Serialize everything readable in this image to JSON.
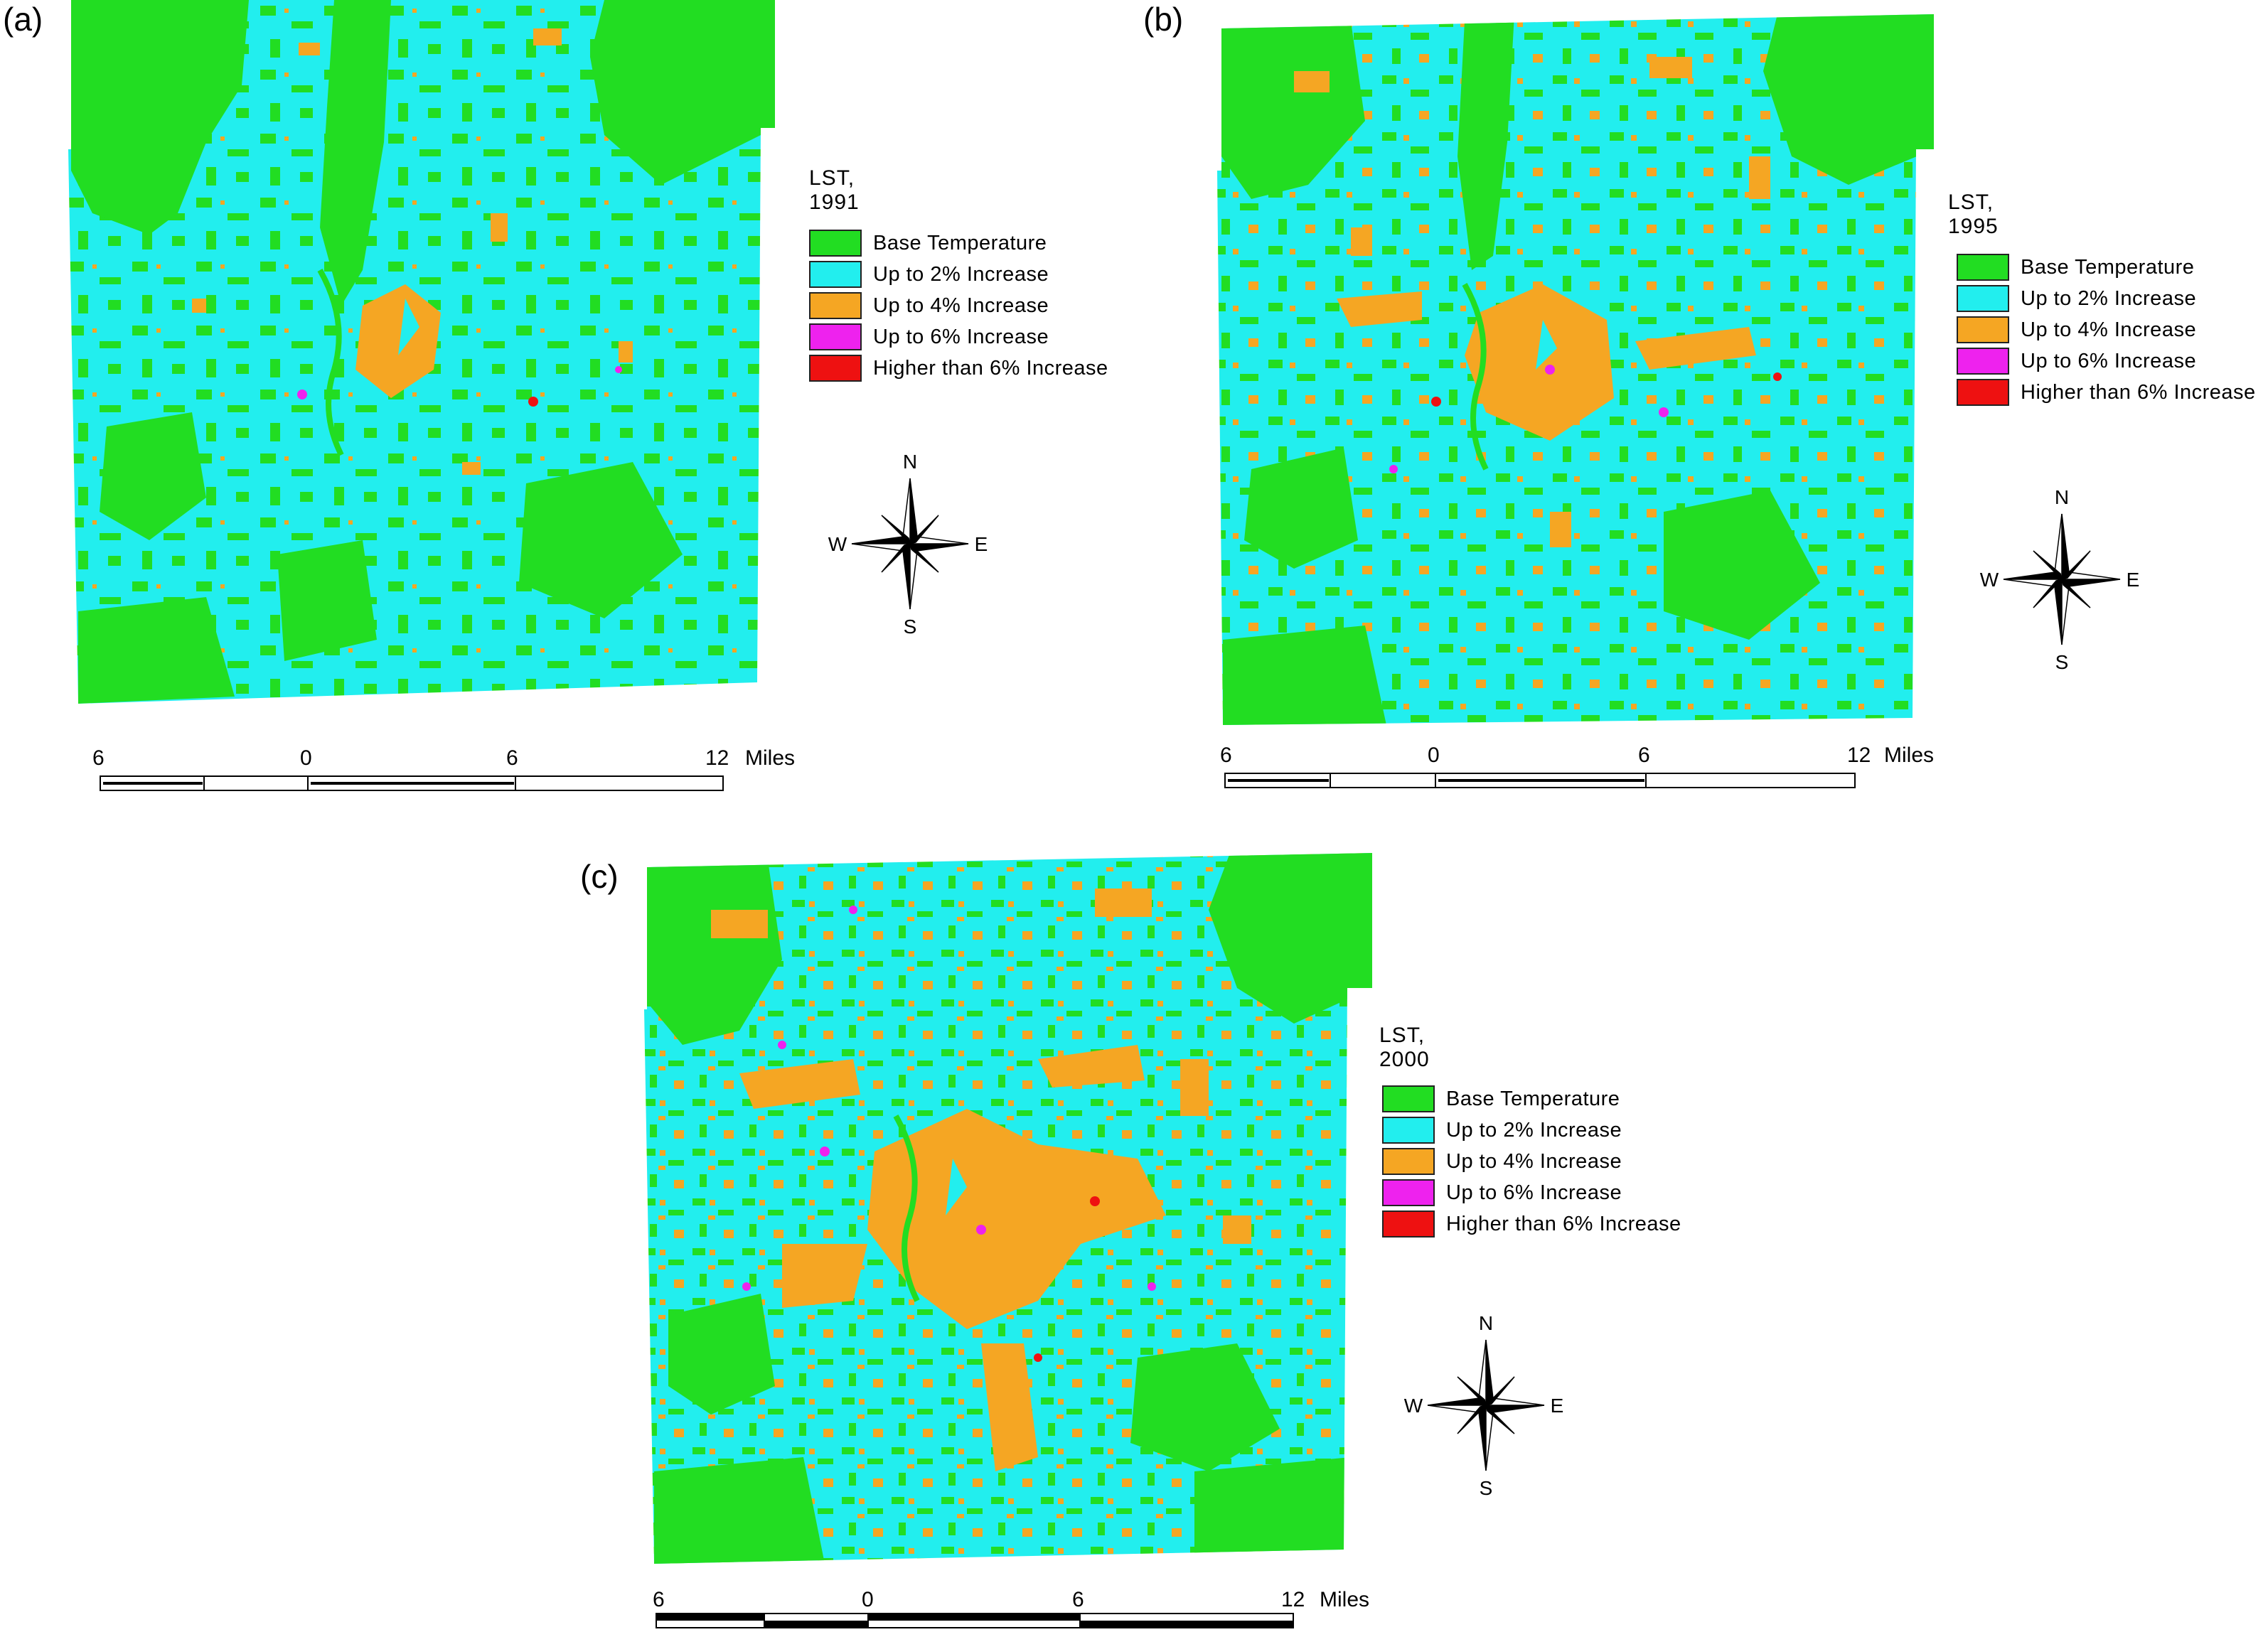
{
  "legend_items": [
    {
      "label": "Base Temperature",
      "color": "#22dd22"
    },
    {
      "label": "Up to 2% Increase",
      "color": "#22eeee"
    },
    {
      "label": "Up to 4% Increase",
      "color": "#f5a623"
    },
    {
      "label": "Up to 6% Increase",
      "color": "#ee22ee"
    },
    {
      "label": "Higher than 6% Increase",
      "color": "#ee1111"
    }
  ],
  "panels": [
    {
      "id": "a",
      "label": "(a)",
      "title": "LST, 1991"
    },
    {
      "id": "b",
      "label": "(b)",
      "title": "LST, 1995"
    },
    {
      "id": "c",
      "label": "(c)",
      "title": "LST, 2000"
    }
  ],
  "compass": {
    "n": "N",
    "s": "S",
    "e": "E",
    "w": "W"
  },
  "scale": {
    "ticks": [
      "6",
      "0",
      "6",
      "12"
    ],
    "unit": "Miles"
  }
}
